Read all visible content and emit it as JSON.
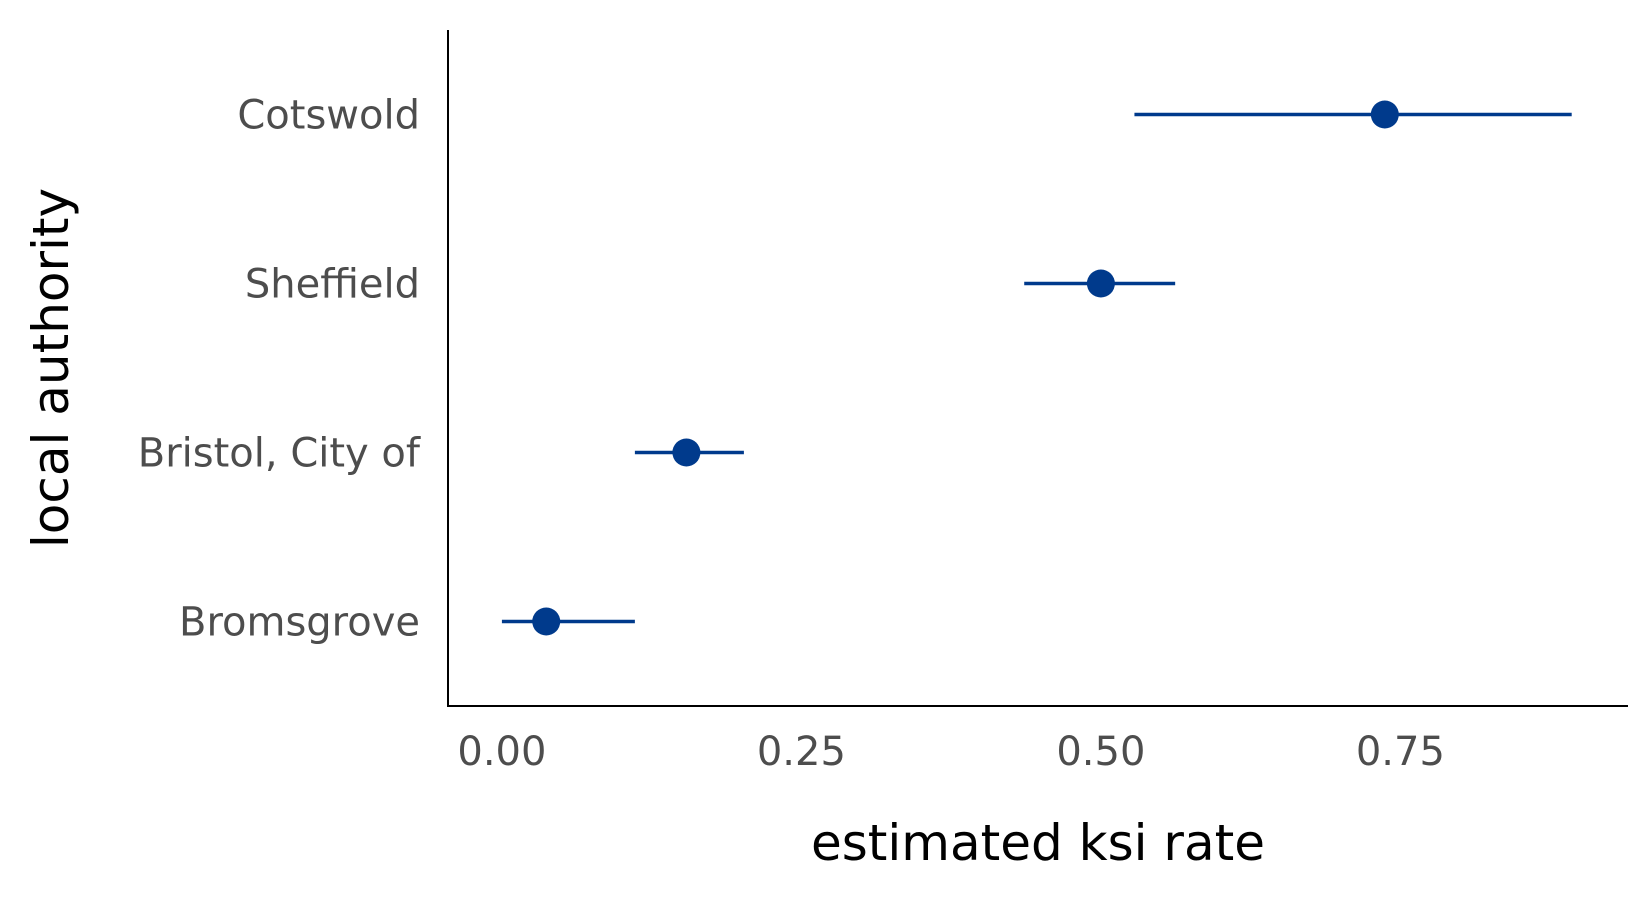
{
  "chart_data": {
    "type": "scatter",
    "title": "",
    "xlabel": "estimated ksi rate",
    "ylabel": "local authority",
    "xlim": [
      -0.045,
      0.94
    ],
    "x_ticks": [
      0.0,
      0.25,
      0.5,
      0.75
    ],
    "x_tick_labels": [
      "0.00",
      "0.25",
      "0.50",
      "0.75"
    ],
    "categories": [
      "Bromsgrove",
      "Bristol, City of",
      "Sheffield",
      "Cotswold"
    ],
    "series": [
      {
        "color": "#003a8c",
        "points": [
          {
            "category": "Bromsgrove",
            "estimate": 0.037,
            "lower": 0.0,
            "upper": 0.111
          },
          {
            "category": "Bristol, City of",
            "estimate": 0.154,
            "lower": 0.111,
            "upper": 0.202
          },
          {
            "category": "Sheffield",
            "estimate": 0.5,
            "lower": 0.436,
            "upper": 0.562
          },
          {
            "category": "Cotswold",
            "estimate": 0.737,
            "lower": 0.528,
            "upper": 0.893
          }
        ]
      }
    ],
    "grid": false,
    "legend": "none"
  }
}
